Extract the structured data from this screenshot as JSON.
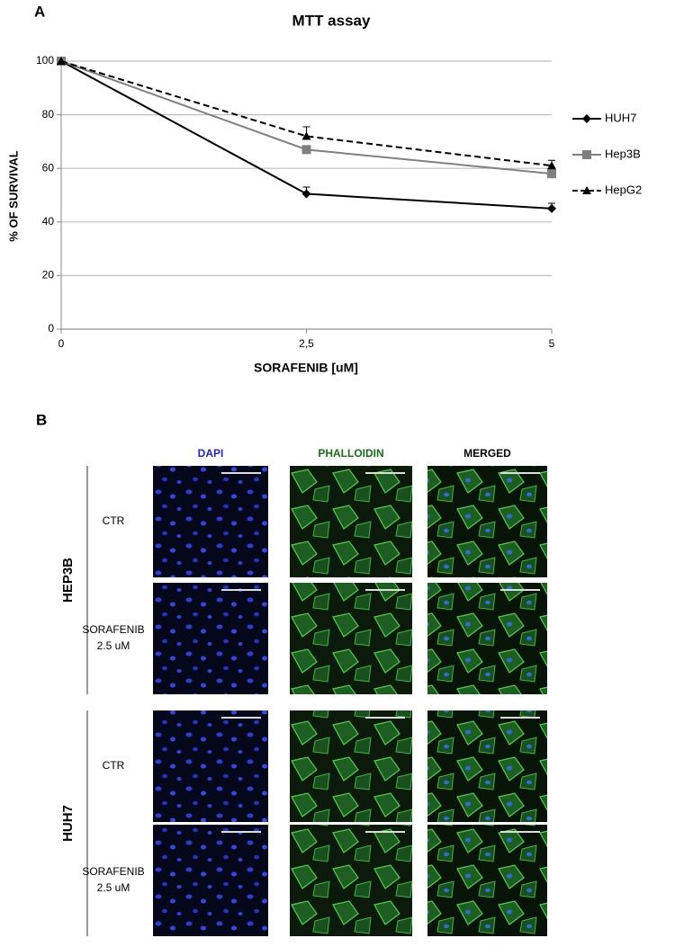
{
  "chart_data": {
    "type": "line",
    "title": "MTT assay",
    "xlabel": "SORAFENIB [uM]",
    "ylabel": "% OF SURVIVAL",
    "x": [
      0,
      2.5,
      5
    ],
    "xlim": [
      0,
      5
    ],
    "xticks": [
      0,
      {
        "value": 2.5,
        "label": "2,5"
      },
      5
    ],
    "ylim": [
      0,
      100
    ],
    "yticks": [
      0,
      20,
      40,
      60,
      80,
      100
    ],
    "grid": true,
    "legend": "right",
    "series": [
      {
        "name": "HUH7",
        "color": "#000000",
        "marker": "diamond",
        "dash": false,
        "values": [
          100,
          50.5,
          45
        ],
        "errors": [
          0,
          2.5,
          2
        ]
      },
      {
        "name": "Hep3B",
        "color": "#808080",
        "marker": "square",
        "dash": false,
        "values": [
          100,
          67,
          58
        ],
        "errors": [
          0,
          1,
          1
        ]
      },
      {
        "name": "HepG2",
        "color": "#000000",
        "marker": "triangle",
        "dash": true,
        "values": [
          100,
          72,
          61
        ],
        "errors": [
          0,
          3.5,
          2
        ]
      }
    ]
  },
  "figure": {
    "panel_labels": [
      "A",
      "B"
    ],
    "columns": [
      "DAPI",
      "PHALLOIDIN",
      "MERGED"
    ],
    "groups": [
      {
        "label": "HEP3B",
        "rows": [
          [
            "CTR"
          ],
          [
            "SORAFENIB",
            "2.5 uM"
          ]
        ]
      },
      {
        "label": "HUH7",
        "rows": [
          [
            "CTR"
          ],
          [
            "SORAFENIB",
            "2.5 uM"
          ]
        ]
      }
    ]
  }
}
